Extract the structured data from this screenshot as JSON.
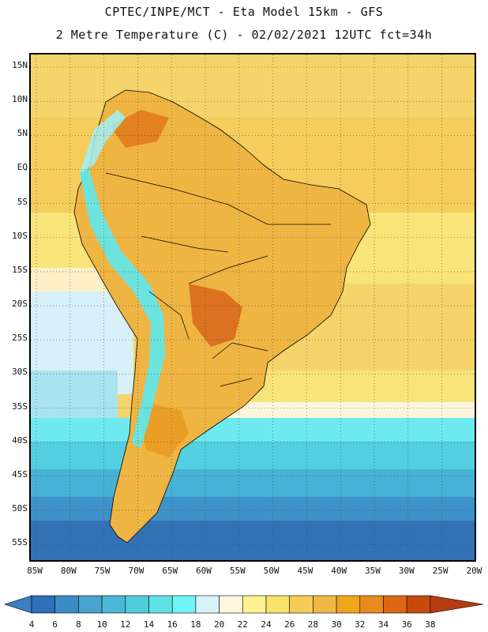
{
  "header": {
    "line1": "CPTEC/INPE/MCT -  Eta Model 15km - GFS",
    "line2": "2 Metre Temperature (C) - 02/02/2021 12UTC fct=34h"
  },
  "map": {
    "region": "South America",
    "lat_labels": [
      "15N",
      "10N",
      "5N",
      "EQ",
      "5S",
      "10S",
      "15S",
      "20S",
      "25S",
      "30S",
      "35S",
      "40S",
      "45S",
      "50S",
      "55S"
    ],
    "lon_labels": [
      "85W",
      "80W",
      "75W",
      "70W",
      "65W",
      "60W",
      "55W",
      "50W",
      "45W",
      "40W",
      "35W",
      "30W",
      "25W",
      "20W"
    ],
    "land_color": "#efb543",
    "hot_color": "#e07819",
    "andes_color": "#5ee8f0"
  },
  "colorbar": {
    "labels": [
      "4",
      "6",
      "8",
      "10",
      "12",
      "14",
      "16",
      "18",
      "20",
      "22",
      "24",
      "26",
      "28",
      "30",
      "32",
      "34",
      "36",
      "38"
    ],
    "colors": [
      "#3a7fc0",
      "#2f6fb8",
      "#3b8cc5",
      "#48a3cf",
      "#4bb8d6",
      "#50ccdb",
      "#5fe0e6",
      "#70f4f6",
      "#d6f3fa",
      "#fff6dc",
      "#fdf192",
      "#f9e26a",
      "#f4cc56",
      "#efb743",
      "#f0a51d",
      "#e98a1e",
      "#db6613",
      "#c64a0b",
      "#b53c12"
    ],
    "unit": "C"
  }
}
